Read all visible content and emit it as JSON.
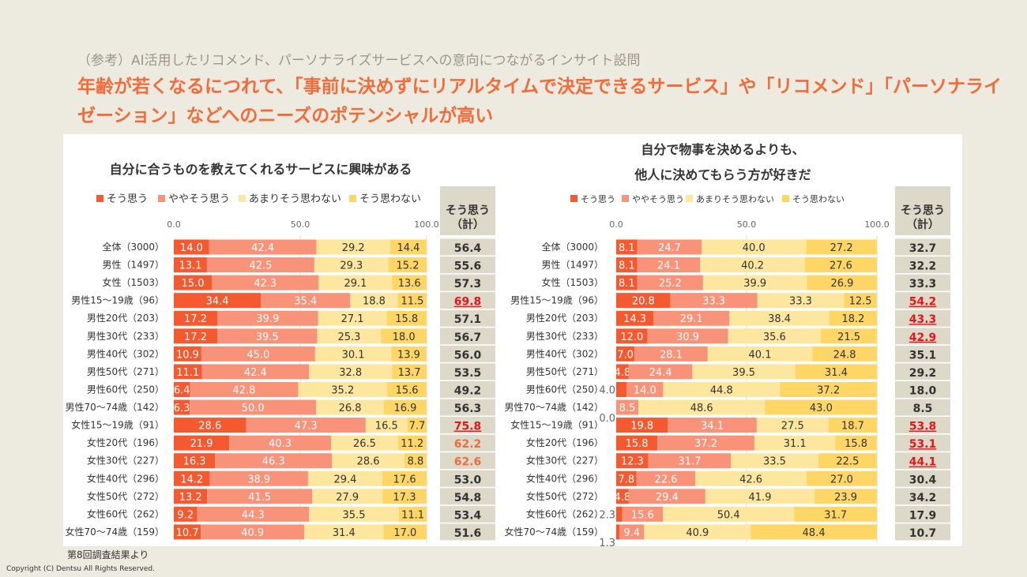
{
  "header": {
    "subtitle": "（参考）AI活用したリコメンド、パーソナライズサービスへの意向につながるインサイト設問",
    "title_line1": "年齢が若くなるにつれて、「事前に決めずにリアルタイムで決定できるサービス」や「リコメンド」「パーソナライ",
    "title_line2": "ゼーション」などへのニーズのポテンシャルが高い"
  },
  "footer": {
    "source": "第8回調査結果より",
    "copyright": "Copyright (C) Dentsu All Rights Reserved."
  },
  "colors": {
    "そう思う": "#f4592f",
    "ややそう思う": "#f8937a",
    "あまりそう思わない": "#fde69e",
    "そう思わない": "#fdd666",
    "highlight": "#e8141b",
    "accent": "#f26b3a",
    "summary_bg": "#ddd9c8"
  },
  "chart_data": [
    {
      "type": "bar",
      "orientation": "horizontal",
      "stacked": true,
      "title": "自分に合うものを教えてくれるサービスに興味がある",
      "xlim": [
        0,
        100
      ],
      "xticks": [
        "0.0",
        "50.0",
        "100.0"
      ],
      "legend": "top",
      "summary_header": [
        "そう思う",
        "（計）"
      ],
      "categories": [
        "全体（3000）",
        "男性（1497）",
        "女性（1503）",
        "男性15～19歳（96）",
        "男性20代（203）",
        "男性30代（233）",
        "男性40代（302）",
        "男性50代（271）",
        "男性60代（250）",
        "男性70～74歳（142）",
        "女性15～19歳（91）",
        "女性20代（196）",
        "女性30代（227）",
        "女性40代（296）",
        "女性50代（272）",
        "女性60代（262）",
        "女性70～74歳（159）"
      ],
      "series": [
        {
          "name": "そう思う",
          "values": [
            14.0,
            13.1,
            15.0,
            34.4,
            17.2,
            17.2,
            10.9,
            11.1,
            6.4,
            6.3,
            28.6,
            21.9,
            16.3,
            14.2,
            13.2,
            9.2,
            10.7
          ]
        },
        {
          "name": "ややそう思う",
          "values": [
            42.4,
            42.5,
            42.3,
            35.4,
            39.9,
            39.5,
            45.0,
            42.4,
            42.8,
            50.0,
            47.3,
            40.3,
            46.3,
            38.9,
            41.5,
            44.3,
            40.9
          ]
        },
        {
          "name": "あまりそう思わない",
          "values": [
            29.2,
            29.3,
            29.1,
            18.8,
            27.1,
            25.3,
            30.1,
            32.8,
            35.2,
            26.8,
            16.5,
            26.5,
            28.6,
            29.4,
            27.9,
            35.5,
            31.4
          ]
        },
        {
          "name": "そう思わない",
          "values": [
            14.4,
            15.2,
            13.6,
            11.5,
            15.8,
            18.0,
            13.9,
            13.7,
            15.6,
            16.9,
            7.7,
            11.2,
            8.8,
            17.6,
            17.3,
            11.1,
            17.0
          ]
        }
      ],
      "summary": [
        "56.4",
        "55.6",
        "57.3",
        "69.8",
        "57.1",
        "56.7",
        "56.0",
        "53.5",
        "49.2",
        "56.3",
        "75.8",
        "62.2",
        "62.6",
        "53.0",
        "54.8",
        "53.4",
        "51.6"
      ],
      "summary_highlight": [
        "",
        "",
        "",
        "red",
        "",
        "",
        "",
        "",
        "",
        "",
        "red",
        "orange",
        "orange",
        "",
        "",
        "",
        ""
      ]
    },
    {
      "type": "bar",
      "orientation": "horizontal",
      "stacked": true,
      "title": [
        "自分で物事を決めるよりも、",
        "他人に決めてもらう方が好きだ"
      ],
      "xlim": [
        0,
        100
      ],
      "xticks": [
        "0.0",
        "50.0",
        "100.0"
      ],
      "legend": "top",
      "summary_header": [
        "そう思う",
        "（計）"
      ],
      "categories": [
        "全体（3000）",
        "男性（1497）",
        "女性（1503）",
        "男性15～19歳（96）",
        "男性20代（203）",
        "男性30代（233）",
        "男性40代（302）",
        "男性50代（271）",
        "男性60代（250）",
        "男性70～74歳（142）",
        "女性15～19歳（91）",
        "女性20代（196）",
        "女性30代（227）",
        "女性40代（296）",
        "女性50代（272）",
        "女性60代（262）",
        "女性70～74歳（159）"
      ],
      "series": [
        {
          "name": "そう思う",
          "values": [
            8.1,
            8.1,
            8.1,
            20.8,
            14.3,
            12.0,
            7.0,
            4.8,
            4.0,
            0.0,
            19.8,
            15.8,
            12.3,
            7.8,
            4.8,
            2.3,
            1.3
          ]
        },
        {
          "name": "ややそう思う",
          "values": [
            24.7,
            24.1,
            25.2,
            33.3,
            29.1,
            30.9,
            28.1,
            24.4,
            14.0,
            8.5,
            34.1,
            37.2,
            31.7,
            22.6,
            29.4,
            15.6,
            9.4
          ]
        },
        {
          "name": "あまりそう思わない",
          "values": [
            40.0,
            40.2,
            39.9,
            33.3,
            38.4,
            35.6,
            40.1,
            39.5,
            44.8,
            48.6,
            27.5,
            31.1,
            33.5,
            42.6,
            41.9,
            50.4,
            40.9
          ]
        },
        {
          "name": "そう思わない",
          "values": [
            27.2,
            27.6,
            26.9,
            12.5,
            18.2,
            21.5,
            24.8,
            31.4,
            37.2,
            43.0,
            18.7,
            15.8,
            22.5,
            27.0,
            23.9,
            31.7,
            48.4
          ]
        }
      ],
      "summary": [
        "32.7",
        "32.2",
        "33.3",
        "54.2",
        "43.3",
        "42.9",
        "35.1",
        "29.2",
        "18.0",
        "8.5",
        "53.8",
        "53.1",
        "44.1",
        "30.4",
        "34.2",
        "17.9",
        "10.7"
      ],
      "summary_highlight": [
        "",
        "",
        "",
        "red",
        "red",
        "red",
        "",
        "",
        "",
        "",
        "red",
        "red",
        "red",
        "",
        "",
        "",
        ""
      ]
    }
  ]
}
